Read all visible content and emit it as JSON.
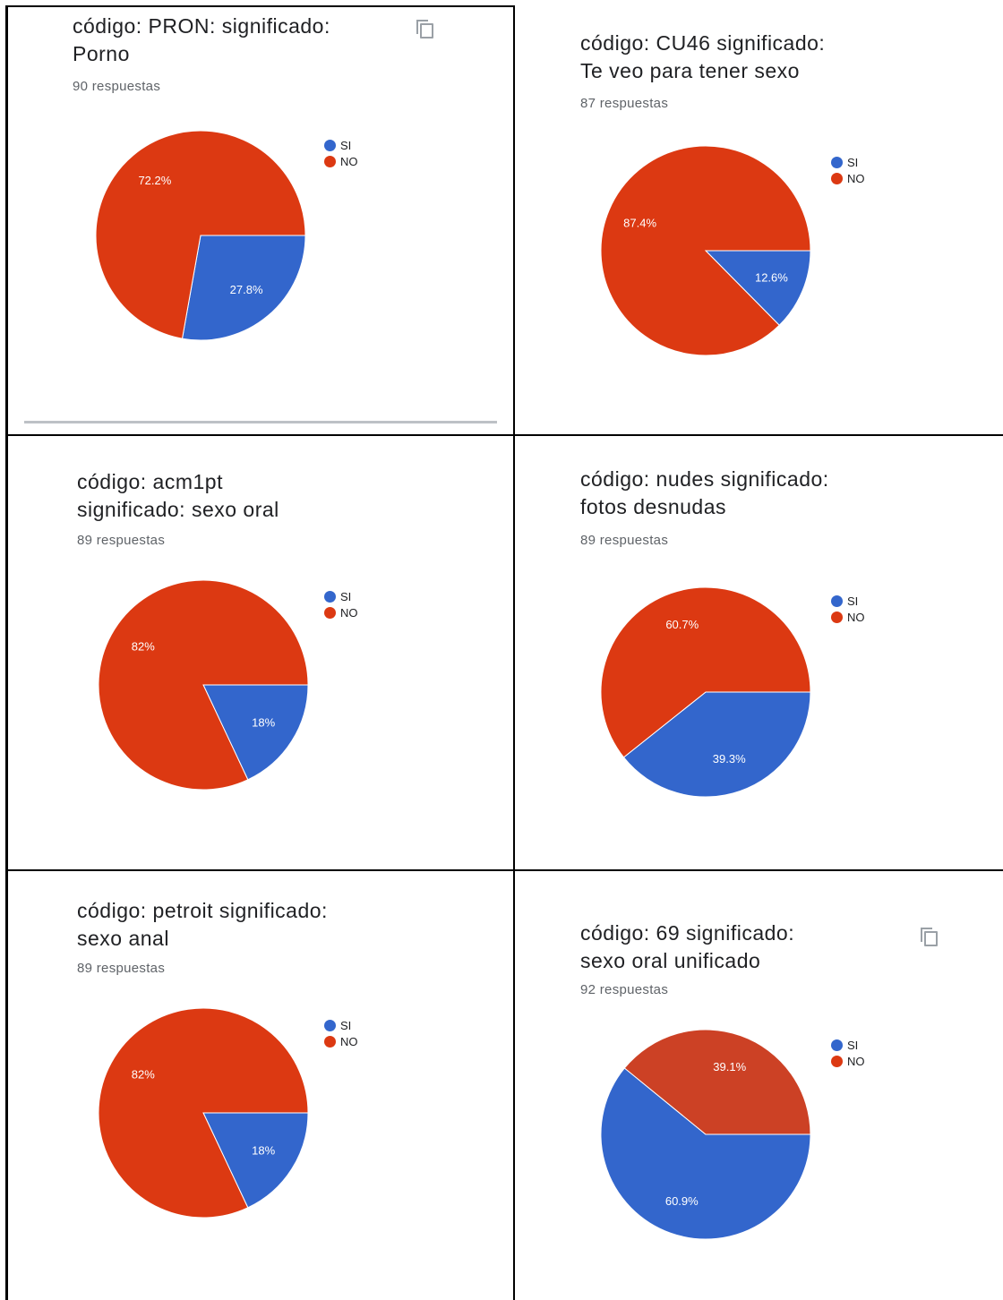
{
  "colors": {
    "si": "#3366cc",
    "no": "#dc3912",
    "no_alt": "#cc4125"
  },
  "legend": {
    "si_label": "SI",
    "no_label": "NO"
  },
  "panels": [
    {
      "title": "código: PRON: significado:\nPorno",
      "responses": "90 respuestas",
      "copy_icon": true
    },
    {
      "title": "código: CU46 significado:\nTe veo para tener sexo",
      "responses": "87 respuestas",
      "copy_icon": false
    },
    {
      "title": "código: acm1pt\nsignificado: sexo oral",
      "responses": "89 respuestas",
      "copy_icon": false
    },
    {
      "title": "código: nudes significado:\nfotos desnudas",
      "responses": "89 respuestas",
      "copy_icon": false
    },
    {
      "title": "código: petroit significado:\nsexo anal",
      "responses": "89 respuestas",
      "copy_icon": false
    },
    {
      "title": "código: 69 significado:\nsexo oral unificado",
      "responses": "92 respuestas",
      "copy_icon": true
    }
  ],
  "chart_data": [
    {
      "type": "pie",
      "categories": [
        "SI",
        "NO"
      ],
      "values": [
        27.8,
        72.2
      ],
      "labels": [
        "27.8%",
        "72.2%"
      ],
      "legend": "top-right"
    },
    {
      "type": "pie",
      "categories": [
        "SI",
        "NO"
      ],
      "values": [
        12.6,
        87.4
      ],
      "labels": [
        "12.6%",
        "87.4%"
      ],
      "legend": "top-right"
    },
    {
      "type": "pie",
      "categories": [
        "SI",
        "NO"
      ],
      "values": [
        18,
        82
      ],
      "labels": [
        "18%",
        "82%"
      ],
      "legend": "top-right"
    },
    {
      "type": "pie",
      "categories": [
        "SI",
        "NO"
      ],
      "values": [
        39.3,
        60.7
      ],
      "labels": [
        "39.3%",
        "60.7%"
      ],
      "legend": "top-right"
    },
    {
      "type": "pie",
      "categories": [
        "SI",
        "NO"
      ],
      "values": [
        18,
        82
      ],
      "labels": [
        "18%",
        "82%"
      ],
      "legend": "top-right"
    },
    {
      "type": "pie",
      "categories": [
        "SI",
        "NO"
      ],
      "values": [
        60.9,
        39.1
      ],
      "labels": [
        "60.9%",
        "39.1%"
      ],
      "legend": "top-right"
    }
  ]
}
